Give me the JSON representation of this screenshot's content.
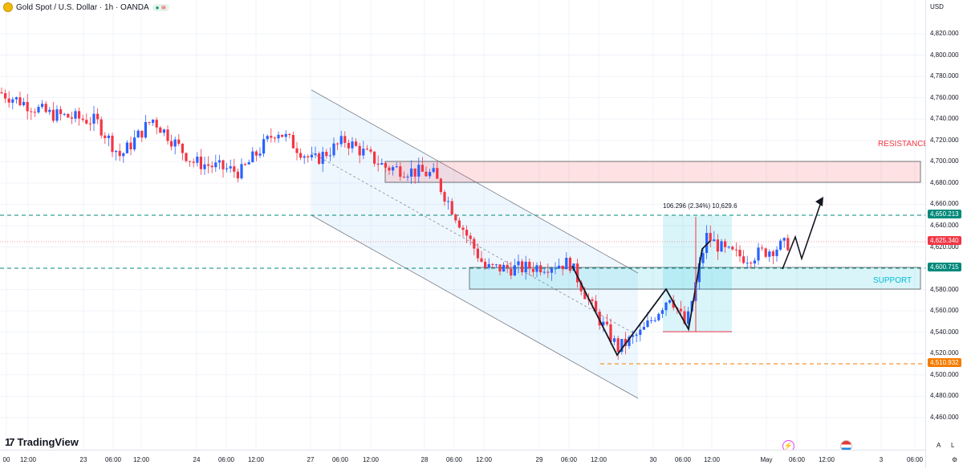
{
  "symbol": {
    "title": "Gold Spot / U.S. Dollar · 1h · OANDA",
    "status_dot": "●",
    "status_wave": "≋"
  },
  "currency": "USD",
  "price_ticks": [
    "4,820.000",
    "4,800.000",
    "4,780.000",
    "4,760.000",
    "4,740.000",
    "4,720.000",
    "4,700.000",
    "4,680.000",
    "4,660.000",
    "4,640.000",
    "4,620.000",
    "4,580.000",
    "4,560.000",
    "4,540.000",
    "4,520.000",
    "4,500.000",
    "4,480.000",
    "4,460.000"
  ],
  "price_values": [
    4820,
    4800,
    4780,
    4760,
    4740,
    4720,
    4700,
    4680,
    4660,
    4640,
    4620,
    4580,
    4560,
    4540,
    4520,
    4500,
    4480,
    4460
  ],
  "price_tags": [
    {
      "label": "4,650.213",
      "value": 4650.213,
      "color": "#00897b"
    },
    {
      "label": "4,625.340",
      "value": 4625.34,
      "color": "#f23645"
    },
    {
      "label": "4,600.715",
      "value": 4600.715,
      "color": "#00897b"
    },
    {
      "label": "4,510.932",
      "value": 4510.932,
      "color": "#f57c00"
    }
  ],
  "time_ticks": [
    "00",
    "12:00",
    "23",
    "06:00",
    "12:00",
    "24",
    "06:00",
    "12:00",
    "27",
    "06:00",
    "12:00",
    "28",
    "06:00",
    "12:00",
    "29",
    "06:00",
    "12:00",
    "30",
    "06:00",
    "12:00",
    "May",
    "06:00",
    "12:00",
    "3",
    "06:00"
  ],
  "labels": {
    "resistance": "RESISTANCE",
    "support": "SUPPORT",
    "measure": "106.296 (2.34%) 10,629.6"
  },
  "branding": {
    "logo_text": "TradingView",
    "logo_mark": "17"
  },
  "axis_buttons": {
    "auto": "A",
    "log": "L",
    "settings": "⚙"
  },
  "colors": {
    "up": "#2962ff",
    "down": "#f23645",
    "support": "#00bcd4",
    "resistance": "#f23645",
    "channel": "#2196f3"
  },
  "icons": {
    "flash": "⚡"
  }
}
